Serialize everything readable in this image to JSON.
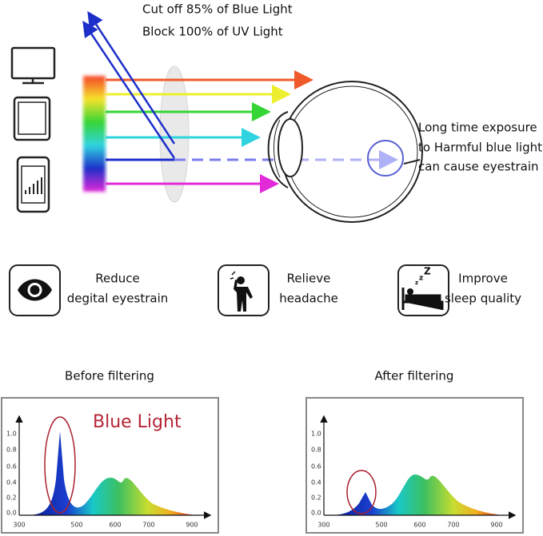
{
  "header": {
    "line1": "Cut off 85% of Blue Light",
    "line2": "Block 100% of UV Light"
  },
  "eye_note": [
    "Long time exposure",
    "to Harmful blue light",
    "can cause eyestrain"
  ],
  "benefits": [
    {
      "line1": "Reduce",
      "line2": "degital eyestrain"
    },
    {
      "line1": "Relieve",
      "line2": "headache"
    },
    {
      "line1": "Improve",
      "line2": "sleep quality"
    }
  ],
  "spectra": [
    {
      "title": "Before filtering",
      "label": "Blue Light",
      "yticks": [
        "1.0",
        "0.8",
        "0.6",
        "0.4",
        "0.2",
        "0.0"
      ],
      "xticks": [
        300,
        500,
        600,
        700,
        900
      ]
    },
    {
      "title": "After filtering",
      "yticks": [
        "1.0",
        "0.8",
        "0.6",
        "0.4",
        "0.2",
        "0.0"
      ],
      "xticks": [
        300,
        500,
        600,
        700,
        900
      ]
    }
  ]
}
